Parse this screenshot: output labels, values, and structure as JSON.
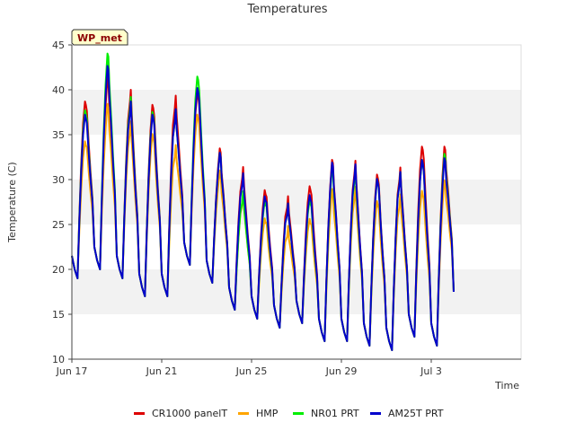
{
  "chart_data": {
    "type": "line",
    "title": "Temperatures",
    "xlabel": "Time",
    "ylabel": "Temperature (C)",
    "badge": "WP_met",
    "ylim": [
      10,
      45
    ],
    "yticks": [
      10,
      15,
      20,
      25,
      30,
      35,
      40,
      45
    ],
    "xlim": [
      "2023-06-17",
      "2023-07-07"
    ],
    "xticks": [
      {
        "date": "2023-06-17",
        "label": "Jun 17"
      },
      {
        "date": "2023-06-21",
        "label": "Jun 21"
      },
      {
        "date": "2023-06-25",
        "label": "Jun 25"
      },
      {
        "date": "2023-06-29",
        "label": "Jun 29"
      },
      {
        "date": "2023-07-03",
        "label": "Jul 3"
      }
    ],
    "grid": "horizontal bands",
    "legend": "bottom",
    "daily": {
      "days": [
        "2023-06-17",
        "2023-06-18",
        "2023-06-19",
        "2023-06-20",
        "2023-06-21",
        "2023-06-22",
        "2023-06-23",
        "2023-06-24",
        "2023-06-25",
        "2023-06-26",
        "2023-06-27",
        "2023-06-28",
        "2023-06-29",
        "2023-06-30",
        "2023-07-01",
        "2023-07-02",
        "2023-07-03",
        "2023-07-04",
        "2023-07-05"
      ],
      "min": [
        19,
        20,
        19,
        17,
        17,
        20.5,
        18.5,
        15.5,
        14.5,
        13.5,
        14,
        12,
        12,
        11.5,
        11,
        12.5,
        11.5,
        16,
        16
      ]
    },
    "series": [
      {
        "name": "CR1000 panelT",
        "color": "#dd0000",
        "max": [
          39,
          41,
          39.3,
          38.3,
          39,
          40,
          33,
          30.7,
          28.7,
          27.8,
          29.5,
          31.8,
          31.4,
          30.5,
          31,
          34,
          33.3
        ]
      },
      {
        "name": "HMP",
        "color": "#ffa500",
        "max": [
          34.5,
          38,
          35.8,
          35,
          33.5,
          37.5,
          30.5,
          27.8,
          25.5,
          24.5,
          25.8,
          28.5,
          28.5,
          27.5,
          28,
          29,
          29.5
        ]
      },
      {
        "name": "NR01 PRT",
        "color": "#00ee00",
        "max": [
          38,
          43.7,
          38.5,
          37.5,
          37.5,
          41.8,
          32.5,
          28,
          27.5,
          27,
          28,
          31,
          30.5,
          30,
          30.5,
          32.5,
          32.5
        ]
      },
      {
        "name": "AM25T PRT",
        "color": "#0000cc",
        "max": [
          37.5,
          42.3,
          38,
          37.2,
          37.5,
          40.5,
          32.5,
          30,
          28,
          27,
          28.5,
          31.5,
          31,
          30,
          30.5,
          32.5,
          32
        ]
      }
    ]
  }
}
